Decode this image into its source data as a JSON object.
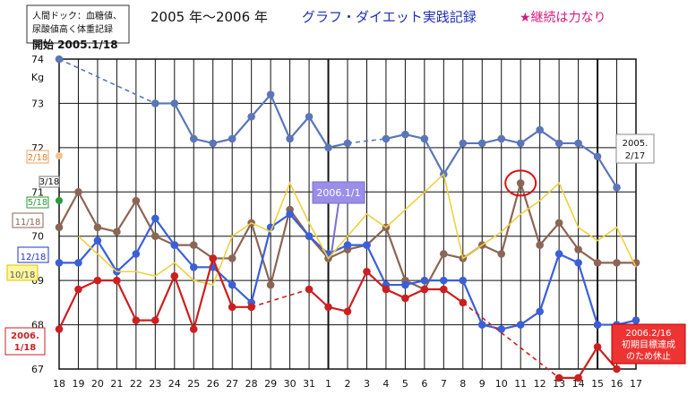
{
  "chart_data": {
    "type": "line",
    "title": "2005 年〜2006 年",
    "subtitle": "グラフ・ダイエット実践記録",
    "motto": "★継続は力なり",
    "ylabel": "Kg",
    "ylim": [
      67,
      74
    ],
    "y_ticks": [
      "74",
      "73",
      "72",
      "71",
      "70",
      "69",
      "68",
      "67"
    ],
    "grid": true,
    "categories": [
      "18",
      "19",
      "20",
      "21",
      "22",
      "23",
      "24",
      "25",
      "26",
      "27",
      "28",
      "29",
      "30",
      "31",
      "1",
      "2",
      "3",
      "4",
      "5",
      "6",
      "7",
      "8",
      "9",
      "10",
      "11",
      "12",
      "13",
      "14",
      "15",
      "16",
      "17"
    ],
    "series": [
      {
        "name": "2/18",
        "color": "#5b76b8",
        "values": [
          74.0,
          null,
          null,
          null,
          null,
          73.0,
          73.0,
          72.2,
          72.1,
          72.2,
          72.7,
          73.2,
          72.2,
          72.7,
          72.0,
          72.1,
          null,
          72.2,
          72.3,
          72.2,
          71.4,
          72.1,
          72.1,
          72.2,
          72.1,
          72.4,
          72.1,
          72.1,
          71.8,
          71.1,
          null
        ]
      },
      {
        "name": "11/18",
        "color": "#8b6555",
        "values": [
          70.2,
          71.0,
          70.2,
          70.1,
          70.8,
          70.0,
          69.8,
          69.8,
          69.5,
          69.5,
          70.3,
          68.9,
          70.6,
          70.0,
          69.5,
          69.7,
          69.8,
          70.2,
          69.0,
          68.8,
          69.6,
          69.5,
          69.8,
          69.6,
          71.2,
          69.8,
          70.3,
          69.7,
          69.4,
          69.4,
          69.4
        ]
      },
      {
        "name": "12/18",
        "color": "#3a5fd8",
        "values": [
          69.4,
          69.4,
          69.9,
          69.2,
          69.6,
          70.4,
          69.8,
          69.3,
          69.3,
          68.9,
          68.5,
          70.2,
          70.5,
          70.0,
          69.6,
          69.8,
          69.8,
          68.9,
          68.9,
          69.0,
          69.0,
          69.0,
          68.0,
          67.9,
          68.0,
          68.3,
          69.6,
          69.4,
          68.0,
          68.0,
          68.1
        ]
      },
      {
        "name": "10/18",
        "color": "#f0d040",
        "values": [
          null,
          70.0,
          69.6,
          69.2,
          69.2,
          69.1,
          69.4,
          69.0,
          68.9,
          70.0,
          70.3,
          70.1,
          71.2,
          70.3,
          69.5,
          70.0,
          70.5,
          70.2,
          70.6,
          71.0,
          71.4,
          69.5,
          69.8,
          70.1,
          70.5,
          70.8,
          71.2,
          70.2,
          69.9,
          70.2,
          69.3
        ]
      },
      {
        "name": "2006.1/18",
        "color": "#cc1f1f",
        "values": [
          67.9,
          68.8,
          69.0,
          69.0,
          68.1,
          68.1,
          69.1,
          67.9,
          69.5,
          68.4,
          68.4,
          null,
          null,
          68.8,
          68.4,
          68.3,
          69.2,
          68.8,
          68.6,
          68.8,
          68.8,
          68.5,
          null,
          null,
          null,
          null,
          66.8,
          66.8,
          67.5,
          67.0,
          null
        ]
      }
    ],
    "annotations": {
      "box_top": "人間ドック：血糖値、尿酸値高く体重記録",
      "start": "開始 2005.1/18",
      "jan1": "2006.1/1",
      "end_top": "2005. 2/17",
      "end_bottom": "2006.2/16 初期目標達成のため休止"
    },
    "legend_labels": {
      "s_3_18": "3/18",
      "s_5_18": "5/18"
    }
  }
}
